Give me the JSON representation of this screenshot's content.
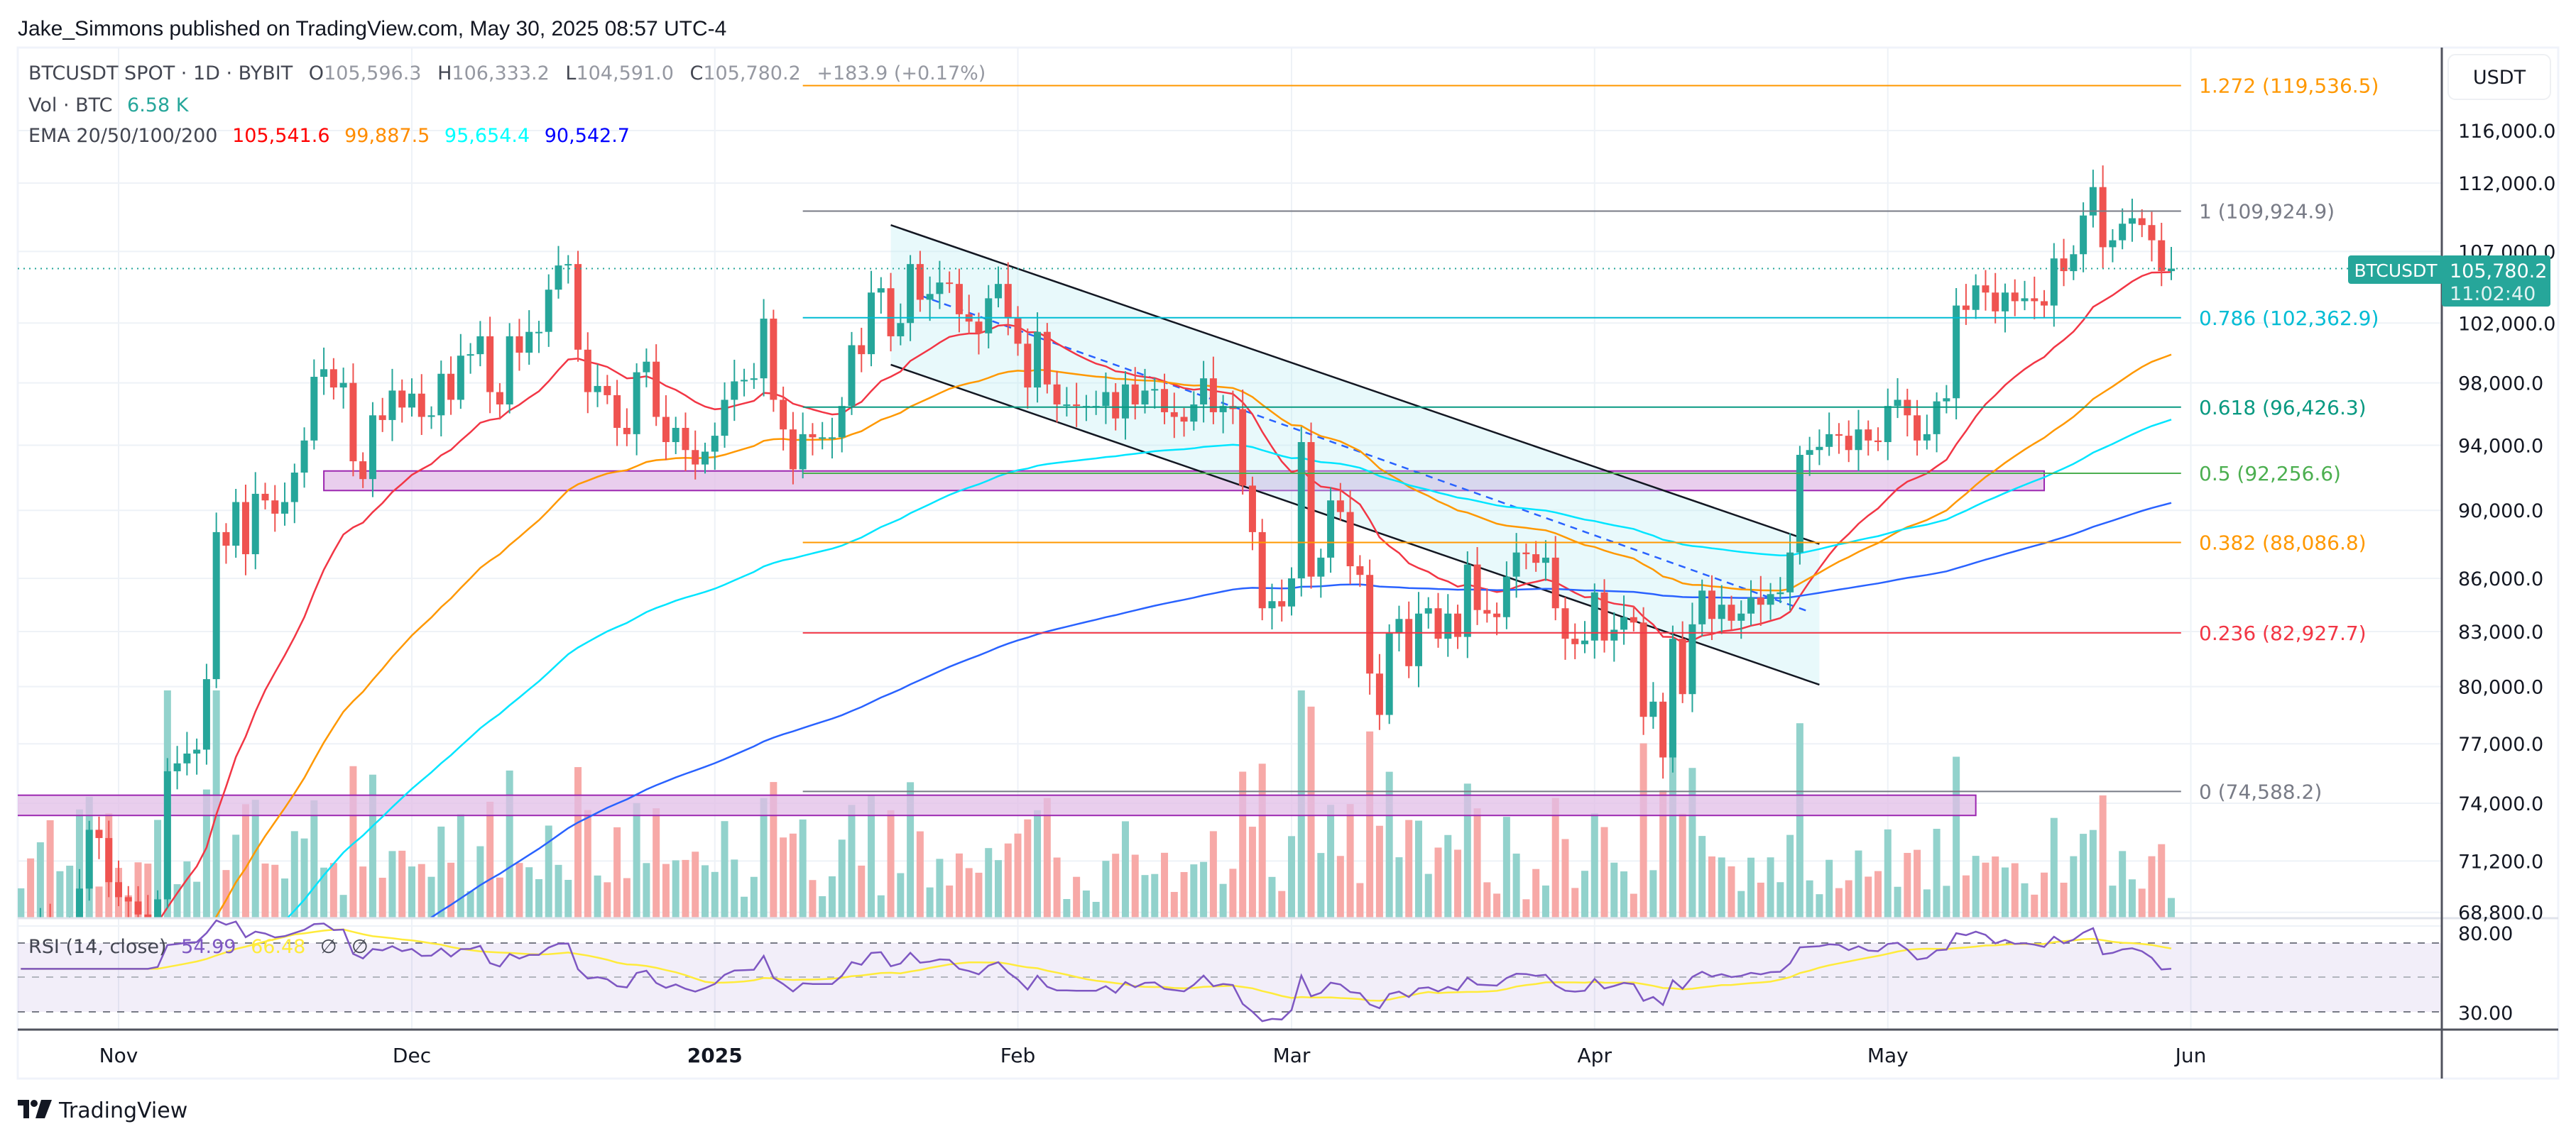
{
  "header": {
    "published": "Jake_Simmons published on TradingView.com, May 30, 2025 08:57 UTC-4"
  },
  "legend": {
    "symbol": "BTCUSDT SPOT · 1D · BYBIT",
    "o_label": "O",
    "o": "105,596.3",
    "h_label": "H",
    "h": "106,333.2",
    "l_label": "L",
    "l": "104,591.0",
    "c_label": "C",
    "c": "105,780.2",
    "change": "+183.9 (+0.17%)",
    "vol_label": "Vol · BTC",
    "vol": "6.58 K",
    "ema_label": "EMA 20/50/100/200",
    "ema": [
      "105,541.6",
      "99,887.5",
      "95,654.4",
      "90,542.7"
    ]
  },
  "rsi_legend": {
    "label": "RSI (14, close)",
    "value": "54.99",
    "ma": "66.48",
    "na1": "∅",
    "na2": "∅"
  },
  "price_axis": {
    "currency_button": "USDT",
    "ticks": [
      "116,000.0",
      "112,000.0",
      "107,000.0",
      "102,000.0",
      "98,000.0",
      "94,000.0",
      "90,000.0",
      "86,000.0",
      "83,000.0",
      "80,000.0",
      "77,000.0",
      "74,000.0",
      "71,200.0",
      "68,800.0"
    ],
    "tick_values": [
      116000,
      112000,
      107000,
      102000,
      98000,
      94000,
      90000,
      86000,
      83000,
      80000,
      77000,
      74000,
      71200,
      68800
    ],
    "last_price_symbol": "BTCUSDT",
    "last_price": "105,780.2",
    "countdown": "11:02:40"
  },
  "rsi_axis": {
    "ticks": [
      "80.00",
      "30.00"
    ]
  },
  "time_axis": {
    "labels": [
      "Nov",
      "Dec",
      "2025",
      "Feb",
      "Mar",
      "Apr",
      "May",
      "Jun"
    ],
    "dates": [
      "2024-11-01",
      "2024-12-01",
      "2025-01-01",
      "2025-02-01",
      "2025-03-01",
      "2025-04-01",
      "2025-05-01",
      "2025-06-01"
    ]
  },
  "branding": {
    "logo_text": "TradingView"
  },
  "colors": {
    "up": "#26a69a",
    "down": "#ef5350",
    "ema20": "#f23645",
    "ema50": "#ff9800",
    "ema100": "#00e5ff",
    "ema200": "#2962ff",
    "rsi": "#7e57c2",
    "rsi_ma": "#ffeb3b",
    "box": "#9c27b0"
  },
  "fib": {
    "start": "2025-01-10",
    "end": "2025-05-31",
    "levels": [
      {
        "ratio": 1.272,
        "price": 119536.5,
        "label": "1.272 (119,536.5)",
        "color": "#ff9800"
      },
      {
        "ratio": 1,
        "price": 109924.9,
        "label": "1 (109,924.9)",
        "color": "#787b86"
      },
      {
        "ratio": 0.786,
        "price": 102362.9,
        "label": "0.786 (102,362.9)",
        "color": "#00bcd4"
      },
      {
        "ratio": 0.618,
        "price": 96426.3,
        "label": "0.618 (96,426.3)",
        "color": "#089981"
      },
      {
        "ratio": 0.5,
        "price": 92256.6,
        "label": "0.5 (92,256.6)",
        "color": "#4caf50"
      },
      {
        "ratio": 0.382,
        "price": 88086.8,
        "label": "0.382 (88,086.8)",
        "color": "#ff9800"
      },
      {
        "ratio": 0.236,
        "price": 82927.7,
        "label": "0.236 (82,927.7)",
        "color": "#f23645"
      },
      {
        "ratio": 0,
        "price": 74588.2,
        "label": "0 (74,588.2)",
        "color": "#787b86"
      }
    ]
  },
  "drawings": {
    "boxes": [
      {
        "start": "2024-11-22",
        "end": "2025-05-17",
        "top": 92400,
        "bottom": 91200
      },
      {
        "start": "2024-10-21",
        "end": "2025-05-10",
        "top": 74400,
        "bottom": 73400
      }
    ],
    "channel": {
      "upper": {
        "start": "2025-01-19",
        "end": "2025-04-24",
        "p1": 108900,
        "p2": 88000
      },
      "lower": {
        "start": "2025-01-19",
        "end": "2025-04-24",
        "p1": 99200,
        "p2": 80100
      },
      "mid": {
        "start": "2025-01-22",
        "end": "2025-04-23",
        "p1": 103900,
        "p2": 84100
      }
    }
  },
  "chart_data": {
    "type": "candlestick",
    "title": "BTCUSDT SPOT · 1D · BYBIT",
    "start_date": "2024-10-22",
    "scale": "log",
    "ylim": [
      68800,
      119536.5
    ],
    "units": "thousand USDT",
    "closes_by_month": {
      "2024-10": [
        67.4,
        66.7,
        68.2,
        66.6,
        67.0,
        67.9,
        69.9,
        72.7,
        72.3,
        70.2
      ],
      "2024-11": [
        69.5,
        69.3,
        68.7,
        67.8,
        69.4,
        75.6,
        76.0,
        76.5,
        76.7,
        80.4,
        88.7,
        87.9,
        90.5,
        87.4,
        91.0,
        90.6,
        89.8,
        90.5,
        92.3,
        94.3,
        98.4,
        98.9,
        97.7,
        98.0,
        93.0,
        91.9,
        95.9,
        95.6,
        97.5,
        96.4
      ],
      "2024-12": [
        97.3,
        95.8,
        95.9,
        98.6,
        96.9,
        99.8,
        99.9,
        101.1,
        97.4,
        96.6,
        101.1,
        100.0,
        101.4,
        101.4,
        104.3,
        106.0,
        106.1,
        100.2,
        97.4,
        97.8,
        97.2,
        95.1,
        94.7,
        98.7,
        99.4,
        95.8,
        94.2,
        95.1,
        93.7,
        92.8,
        93.6
      ],
      "2025-01": [
        94.6,
        96.9,
        98.1,
        98.2,
        98.3,
        102.3,
        96.9,
        95.0,
        92.5,
        94.7,
        94.5,
        94.5,
        94.5,
        96.5,
        100.5,
        99.9,
        104.1,
        104.4,
        101.1,
        102.0,
        106.1,
        103.6,
        104.0,
        104.8,
        104.7,
        102.6,
        102.1,
        101.3,
        103.7,
        104.7,
        102.4
      ],
      "2025-02": [
        100.6,
        97.7,
        101.4,
        97.9,
        96.6,
        96.6,
        96.5,
        96.5,
        96.5,
        97.4,
        95.7,
        97.9,
        96.6,
        97.5,
        97.6,
        96.1,
        95.8,
        95.5,
        96.6,
        98.3,
        96.1,
        96.5,
        96.3,
        91.5,
        88.7,
        84.3,
        84.7,
        84.4
      ],
      "2025-03": [
        86.0,
        94.2,
        86.1,
        87.2,
        90.6,
        89.9,
        86.7,
        86.2,
        80.7,
        78.5,
        82.9,
        83.7,
        81.1,
        84.0,
        84.3,
        82.6,
        84.0,
        82.7,
        86.8,
        84.2,
        84.0,
        83.8,
        86.1,
        87.5,
        87.4,
        86.9,
        87.2,
        84.3,
        82.6,
        82.3,
        82.5
      ],
      "2025-04": [
        85.2,
        82.5,
        83.1,
        83.8,
        83.5,
        78.4,
        79.2,
        76.3,
        82.6,
        79.6,
        83.4,
        85.3,
        83.7,
        84.5,
        83.6,
        84.0,
        84.9,
        84.5,
        85.1,
        85.2,
        87.5,
        93.4,
        93.7,
        93.9,
        94.7,
        94.6,
        93.7,
        95.0,
        94.3,
        94.2
      ],
      "2025-05": [
        96.5,
        96.9,
        95.9,
        94.3,
        94.7,
        96.8,
        97.0,
        103.2,
        102.9,
        104.6,
        104.1,
        102.8,
        104.1,
        103.5,
        103.7,
        103.5,
        103.2,
        106.5,
        105.6,
        106.8,
        109.6,
        111.7,
        107.3,
        107.8,
        109.0,
        109.4,
        108.9,
        107.8,
        105.6,
        105.78
      ]
    },
    "first_open": 67.0,
    "last_close": 105780.2,
    "indicators": {
      "ema_periods": [
        20,
        50,
        100,
        200
      ],
      "ema_seeds": [
        65.5,
        63.0,
        61.5,
        60.0
      ],
      "rsi_period": 14,
      "rsi_ma_period": 14,
      "rsi_bands": [
        70,
        50,
        30
      ]
    }
  }
}
